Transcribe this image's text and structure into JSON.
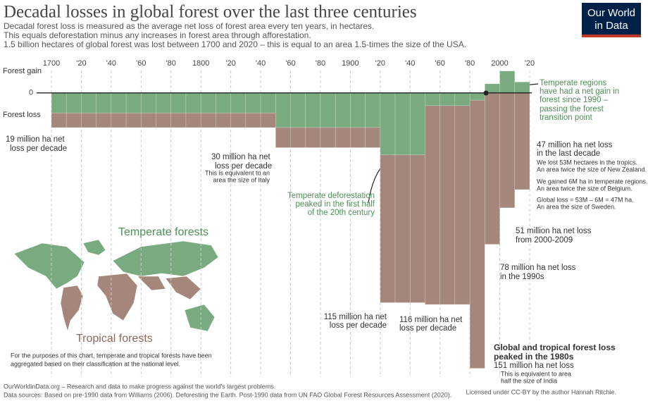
{
  "logo": [
    "Our World",
    "in Data"
  ],
  "chart_data": {
    "type": "bar",
    "title": "Decadal losses in global forest over the last three centuries",
    "subtitle": [
      "Decadal forest loss is measured as the average net loss of forest area every ten years, in hectares.",
      "This equals deforestation minus any increases in forest area through afforestation.",
      "1.5 billion hectares of global forest was lost between 1700 and 2020 – this is equal to an area 1.5-times the size of the USA."
    ],
    "ylabel_top": "Forest gain",
    "ylabel_bottom": "Forest loss",
    "x": [
      1700,
      1710,
      1720,
      1730,
      1740,
      1750,
      1760,
      1770,
      1780,
      1790,
      1800,
      1810,
      1820,
      1830,
      1840,
      1850,
      1860,
      1870,
      1880,
      1890,
      1900,
      1910,
      1920,
      1930,
      1940,
      1950,
      1960,
      1970,
      1980,
      1990,
      2000,
      2010
    ],
    "series": [
      {
        "name": "Temperate forests",
        "color": "#7aab80",
        "values": [
          -11,
          -11,
          -11,
          -11,
          -11,
          -11,
          -11,
          -11,
          -11,
          -11,
          -11,
          -11,
          -11,
          -11,
          -11,
          -19,
          -19,
          -19,
          -19,
          -19,
          -19,
          -19,
          -34,
          -34,
          -34,
          -7,
          -7,
          -7,
          -4,
          5,
          12,
          6
        ]
      },
      {
        "name": "Tropical forests",
        "color": "#a5867a",
        "values": [
          -8,
          -8,
          -8,
          -8,
          -8,
          -8,
          -8,
          -8,
          -8,
          -8,
          -8,
          -8,
          -8,
          -8,
          -8,
          -11,
          -11,
          -11,
          -11,
          -11,
          -11,
          -11,
          -81,
          -81,
          -81,
          -109,
          -109,
          -109,
          -147,
          -83,
          -63,
          -53
        ]
      }
    ],
    "xlim": [
      1700,
      2020
    ],
    "xticks": [
      {
        "value": 1700,
        "label": "1700"
      },
      {
        "value": 1720,
        "label": "'20"
      },
      {
        "value": 1740,
        "label": "'40"
      },
      {
        "value": 1760,
        "label": "'60"
      },
      {
        "value": 1780,
        "label": "'80"
      },
      {
        "value": 1800,
        "label": "1800"
      },
      {
        "value": 1820,
        "label": "'20"
      },
      {
        "value": 1840,
        "label": "'40"
      },
      {
        "value": 1860,
        "label": "'60"
      },
      {
        "value": 1880,
        "label": "'80"
      },
      {
        "value": 1900,
        "label": "1900"
      },
      {
        "value": 1920,
        "label": "'20"
      },
      {
        "value": 1940,
        "label": "'40"
      },
      {
        "value": 1960,
        "label": "'60"
      },
      {
        "value": 1980,
        "label": "'80"
      },
      {
        "value": 2000,
        "label": "2000"
      },
      {
        "value": 2020,
        "label": "'20"
      }
    ],
    "ylim": [
      -155,
      15
    ],
    "yticks": [
      0
    ],
    "grid": true,
    "annotations": [
      "19 million ha net",
      "loss per decade",
      "30 million ha net",
      "loss per decade",
      "This is equivalent to an",
      "area the size of Italy",
      "Temperate deforestation",
      "peaked in the first half",
      "of the 20th century",
      "115 million ha net",
      "loss per decade",
      "116 million ha net",
      "loss per decade",
      "Temperate regions",
      "have had a net gain in",
      "forest since 1990 –",
      "passing the forest",
      "transition point",
      "47 million ha net loss",
      "in the last decade",
      "We lost 53M hectares in the tropics.",
      "An area twice the size of New Zealand.",
      "We gained 6M ha in temperate regions.",
      "An area twice the size of Belgium.",
      "Global loss = 53M – 6M = 47M ha.",
      "An area the size of Sweden.",
      "51 million ha net loss",
      "from 2000-2009",
      "78 million ha net loss",
      "in the 1990s",
      "Global and tropical forest loss",
      "peaked in the 1980s",
      "151 million ha net loss",
      "This is equivalent to area",
      "half the size of India"
    ],
    "note": [
      "For the purposes of this chart, temperate and tropical forests have been",
      "aggregated based on their classification at the national level."
    ],
    "footer": [
      "OurWorldinData.org – Research and data to make progress against the world's largest problems.",
      "Data sources: Based on pre-1990 data from Williams (2006). Deforesting the Earth. Post-1990 data from UN FAO Global Forest Resources Assessment (2020).",
      "Licensed under CC-BY by the author Hannah Ritchie."
    ]
  }
}
